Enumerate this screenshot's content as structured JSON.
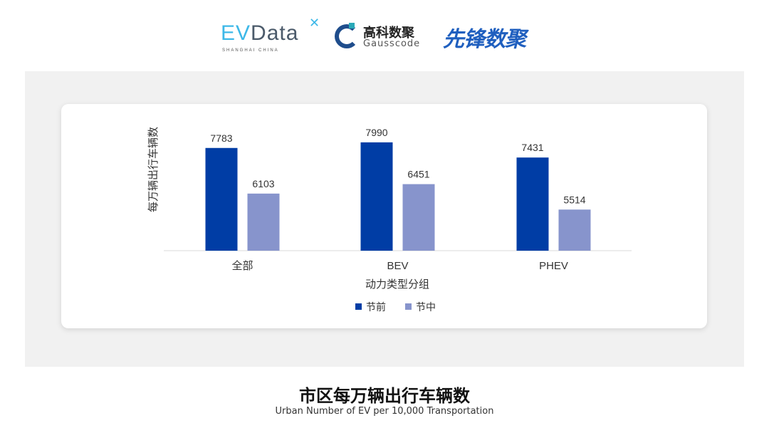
{
  "logos": {
    "evdata": {
      "text": "EVData",
      "sub": "SHANGHAI CHINA"
    },
    "gausscode": {
      "cn": "高科数聚",
      "en": "Gausscode"
    },
    "xianfeng": {
      "text": "先锋数聚"
    }
  },
  "title": "市区每万辆出行车辆数",
  "subtitle": "Urban Number of EV per 10,000 Transportation",
  "chart_data": {
    "type": "bar",
    "categories": [
      "全部",
      "BEV",
      "PHEV"
    ],
    "series": [
      {
        "name": "节前",
        "values": [
          7783,
          7990,
          7431
        ],
        "color": "#003da5"
      },
      {
        "name": "节中",
        "values": [
          6103,
          6451,
          5514
        ],
        "color": "#8794cc"
      }
    ],
    "xlabel": "动力类型分组",
    "ylabel": "每万辆出行车辆数",
    "ylim": [
      4000,
      8000
    ],
    "grid": false,
    "legend": "bottom",
    "data_labels": true
  }
}
